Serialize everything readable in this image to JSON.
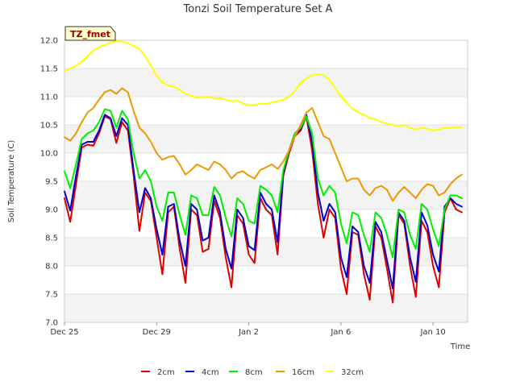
{
  "chart_data": {
    "type": "line",
    "title": "Tonzi Soil Temperature Set A",
    "xlabel": "Time",
    "ylabel": "Soil Temperature (C)",
    "site_badge": "TZ_fmet",
    "ylim": [
      7.0,
      12.0
    ],
    "yticks": [
      "7.0",
      "7.5",
      "8.0",
      "8.5",
      "9.0",
      "9.5",
      "10.0",
      "10.5",
      "11.0",
      "11.5",
      "12.0"
    ],
    "xlim": [
      "2017-12-25",
      "2018-01-11 12:00"
    ],
    "xticks": [
      {
        "x": "2017-12-25",
        "label": "Dec 25"
      },
      {
        "x": "2017-12-29",
        "label": "Dec 29"
      },
      {
        "x": "2018-01-02",
        "label": "Jan 2"
      },
      {
        "x": "2018-01-06",
        "label": "Jan 6"
      },
      {
        "x": "2018-01-10",
        "label": "Jan 10"
      }
    ],
    "grid": true,
    "legend_position": "bottom",
    "x": [
      "2017-12-25 00:00",
      "2017-12-25 06:00",
      "2017-12-25 12:00",
      "2017-12-25 18:00",
      "2017-12-26 00:00",
      "2017-12-26 06:00",
      "2017-12-26 12:00",
      "2017-12-26 18:00",
      "2017-12-27 00:00",
      "2017-12-27 06:00",
      "2017-12-27 12:00",
      "2017-12-27 18:00",
      "2017-12-28 00:00",
      "2017-12-28 06:00",
      "2017-12-28 12:00",
      "2017-12-28 18:00",
      "2017-12-29 00:00",
      "2017-12-29 06:00",
      "2017-12-29 12:00",
      "2017-12-29 18:00",
      "2017-12-30 00:00",
      "2017-12-30 06:00",
      "2017-12-30 12:00",
      "2017-12-30 18:00",
      "2017-12-31 00:00",
      "2017-12-31 06:00",
      "2017-12-31 12:00",
      "2017-12-31 18:00",
      "2018-01-01 00:00",
      "2018-01-01 06:00",
      "2018-01-01 12:00",
      "2018-01-01 18:00",
      "2018-01-02 00:00",
      "2018-01-02 06:00",
      "2018-01-02 12:00",
      "2018-01-02 18:00",
      "2018-01-03 00:00",
      "2018-01-03 06:00",
      "2018-01-03 12:00",
      "2018-01-03 18:00",
      "2018-01-04 00:00",
      "2018-01-04 06:00",
      "2018-01-04 12:00",
      "2018-01-04 18:00",
      "2018-01-05 00:00",
      "2018-01-05 06:00",
      "2018-01-05 12:00",
      "2018-01-05 18:00",
      "2018-01-06 00:00",
      "2018-01-06 06:00",
      "2018-01-06 12:00",
      "2018-01-06 18:00",
      "2018-01-07 00:00",
      "2018-01-07 06:00",
      "2018-01-07 12:00",
      "2018-01-07 18:00",
      "2018-01-08 00:00",
      "2018-01-08 06:00",
      "2018-01-08 12:00",
      "2018-01-08 18:00",
      "2018-01-09 00:00",
      "2018-01-09 06:00",
      "2018-01-09 12:00",
      "2018-01-09 18:00",
      "2018-01-10 00:00",
      "2018-01-10 06:00",
      "2018-01-10 12:00",
      "2018-01-10 18:00",
      "2018-01-11 00:00",
      "2018-01-11 06:00"
    ],
    "series": [
      {
        "name": "2cm",
        "color": "#dd0000",
        "values": [
          9.2,
          8.78,
          9.45,
          10.1,
          10.15,
          10.13,
          10.35,
          10.65,
          10.6,
          10.18,
          10.55,
          10.4,
          9.6,
          8.62,
          9.3,
          9.15,
          8.5,
          7.85,
          8.95,
          9.05,
          8.3,
          7.7,
          9.0,
          8.9,
          8.25,
          8.3,
          9.15,
          8.85,
          8.15,
          7.62,
          8.9,
          8.75,
          8.2,
          8.05,
          9.2,
          9.0,
          8.9,
          8.2,
          9.6,
          10.0,
          10.3,
          10.4,
          10.65,
          10.05,
          9.1,
          8.5,
          9.0,
          8.85,
          7.95,
          7.5,
          8.6,
          8.55,
          7.85,
          7.4,
          8.7,
          8.5,
          7.95,
          7.35,
          8.9,
          8.75,
          8.0,
          7.45,
          8.8,
          8.6,
          8.0,
          7.62,
          8.95,
          9.2,
          9.0,
          8.95
        ]
      },
      {
        "name": "4cm",
        "color": "#0000cc",
        "values": [
          9.32,
          8.98,
          9.6,
          10.15,
          10.2,
          10.2,
          10.4,
          10.68,
          10.62,
          10.3,
          10.62,
          10.5,
          9.7,
          8.95,
          9.38,
          9.2,
          8.65,
          8.2,
          9.05,
          9.1,
          8.45,
          8.0,
          9.1,
          9.0,
          8.45,
          8.5,
          9.25,
          8.95,
          8.3,
          7.95,
          9.0,
          8.85,
          8.35,
          8.28,
          9.3,
          9.1,
          9.0,
          8.42,
          9.65,
          10.05,
          10.35,
          10.42,
          10.68,
          10.2,
          9.3,
          8.8,
          9.1,
          8.95,
          8.15,
          7.8,
          8.7,
          8.6,
          8.0,
          7.7,
          8.78,
          8.6,
          8.1,
          7.6,
          8.95,
          8.8,
          8.15,
          7.72,
          8.95,
          8.72,
          8.2,
          7.9,
          9.05,
          9.2,
          9.1,
          9.05
        ]
      },
      {
        "name": "8cm",
        "color": "#00ee00",
        "values": [
          9.68,
          9.38,
          9.8,
          10.25,
          10.35,
          10.4,
          10.55,
          10.78,
          10.75,
          10.45,
          10.75,
          10.6,
          10.0,
          9.55,
          9.7,
          9.5,
          9.05,
          8.8,
          9.3,
          9.3,
          8.9,
          8.55,
          9.25,
          9.2,
          8.9,
          8.9,
          9.4,
          9.25,
          8.85,
          8.52,
          9.2,
          9.1,
          8.8,
          8.75,
          9.42,
          9.35,
          9.25,
          8.95,
          9.7,
          10.05,
          10.35,
          10.45,
          10.65,
          10.35,
          9.55,
          9.25,
          9.42,
          9.3,
          8.75,
          8.4,
          8.95,
          8.9,
          8.55,
          8.25,
          8.95,
          8.85,
          8.55,
          8.15,
          9.0,
          8.95,
          8.55,
          8.3,
          9.1,
          9.0,
          8.65,
          8.35,
          9.0,
          9.25,
          9.25,
          9.2
        ]
      },
      {
        "name": "16cm",
        "color": "#ee9900",
        "values": [
          10.28,
          10.22,
          10.35,
          10.55,
          10.72,
          10.8,
          10.95,
          11.08,
          11.12,
          11.05,
          11.15,
          11.08,
          10.75,
          10.45,
          10.35,
          10.2,
          10.0,
          9.88,
          9.93,
          9.95,
          9.8,
          9.62,
          9.7,
          9.8,
          9.75,
          9.7,
          9.85,
          9.8,
          9.7,
          9.55,
          9.65,
          9.68,
          9.6,
          9.55,
          9.7,
          9.75,
          9.8,
          9.72,
          9.85,
          10.05,
          10.3,
          10.5,
          10.72,
          10.8,
          10.55,
          10.3,
          10.25,
          10.0,
          9.75,
          9.5,
          9.55,
          9.55,
          9.35,
          9.25,
          9.38,
          9.42,
          9.35,
          9.15,
          9.3,
          9.4,
          9.3,
          9.2,
          9.35,
          9.45,
          9.42,
          9.25,
          9.3,
          9.45,
          9.55,
          9.62
        ]
      },
      {
        "name": "32cm",
        "color": "#ffff00",
        "values": [
          11.45,
          11.5,
          11.55,
          11.62,
          11.72,
          11.82,
          11.88,
          11.92,
          11.97,
          11.98,
          11.98,
          11.95,
          11.9,
          11.85,
          11.72,
          11.55,
          11.38,
          11.25,
          11.2,
          11.18,
          11.12,
          11.05,
          11.02,
          10.98,
          11.0,
          11.0,
          10.97,
          10.98,
          10.95,
          10.92,
          10.93,
          10.88,
          10.85,
          10.85,
          10.88,
          10.87,
          10.9,
          10.92,
          10.95,
          11.0,
          11.1,
          11.25,
          11.32,
          11.38,
          11.4,
          11.38,
          11.3,
          11.15,
          11.0,
          10.9,
          10.78,
          10.72,
          10.68,
          10.62,
          10.6,
          10.55,
          10.52,
          10.5,
          10.48,
          10.5,
          10.45,
          10.42,
          10.45,
          10.43,
          10.4,
          10.42,
          10.45,
          10.45,
          10.46,
          10.46
        ]
      }
    ]
  }
}
